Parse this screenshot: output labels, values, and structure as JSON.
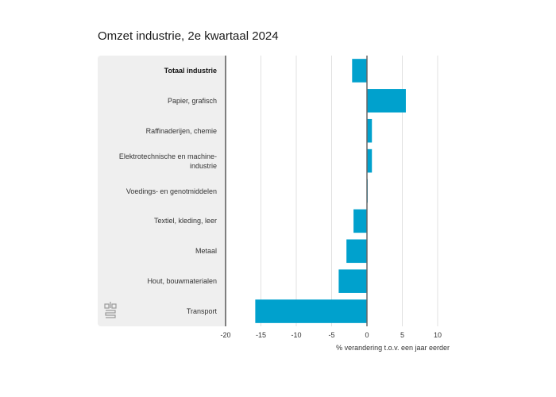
{
  "chart_data": {
    "type": "bar",
    "orientation": "horizontal",
    "title": "Omzet industrie, 2e kwartaal 2024",
    "xlabel": "% verandering t.o.v. een jaar eerder",
    "ylabel": "",
    "xlim": [
      -20,
      12
    ],
    "xticks": [
      -20,
      -15,
      -10,
      -5,
      0,
      5,
      10
    ],
    "grid": true,
    "bar_color": "#00a1cd",
    "categories": [
      "Totaal industrie",
      "Papier, grafisch",
      "Raffinaderijen, chemie",
      "Elektrotechnische en machine-industrie",
      "Voedings- en genotmiddelen",
      "Textiel, kleding, leer",
      "Metaal",
      "Hout, bouwmaterialen",
      "Transport"
    ],
    "category_display": [
      [
        "Totaal industrie"
      ],
      [
        "Papier, grafisch"
      ],
      [
        "Raffinaderijen, chemie"
      ],
      [
        "Elektrotechnische en machine-",
        "industrie"
      ],
      [
        "Voedings- en genotmiddelen"
      ],
      [
        "Textiel, kleding, leer"
      ],
      [
        "Metaal"
      ],
      [
        "Hout, bouwmaterialen"
      ],
      [
        "Transport"
      ]
    ],
    "highlight_category": "Totaal industrie",
    "values": [
      -2.1,
      5.5,
      0.7,
      0.7,
      0.1,
      -1.9,
      -2.9,
      -4.0,
      -15.8
    ]
  },
  "logo": {
    "icon": "cbs-logo-icon"
  }
}
